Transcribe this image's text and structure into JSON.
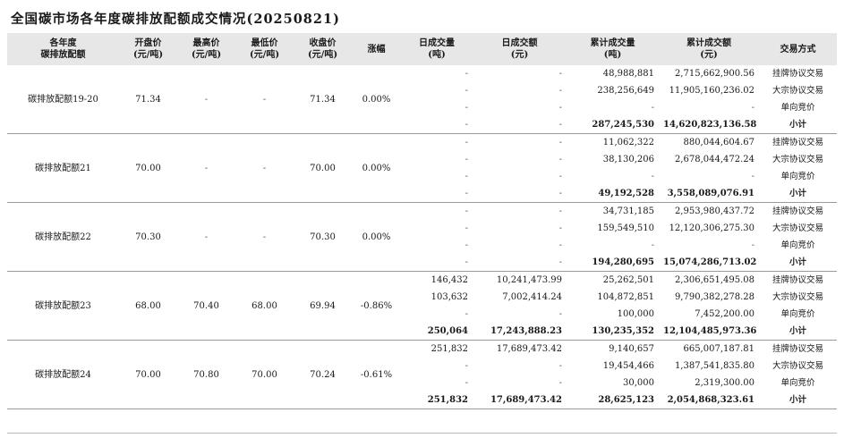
{
  "page_title": "全国碳市场各年度碳排放配额成交情况(20250821)",
  "columns": [
    [
      "各年度",
      "碳排放配额"
    ],
    [
      "开盘价",
      "(元/吨)"
    ],
    [
      "最高价",
      "(元/吨)"
    ],
    [
      "最低价",
      "(元/吨)"
    ],
    [
      "收盘价",
      "(元/吨)"
    ],
    [
      "涨幅"
    ],
    [
      "日成交量",
      "(吨)"
    ],
    [
      "日成交额",
      "(元)"
    ],
    [
      "累计成交量",
      "(吨)"
    ],
    [
      "累计成交额",
      "(元)"
    ],
    [
      "交易方式"
    ]
  ],
  "groups": [
    {
      "name": "碳排放配额19-20",
      "open": "71.34",
      "high": "-",
      "low": "-",
      "close": "71.34",
      "change": "0.00%",
      "rows": [
        {
          "dvol": "-",
          "damt": "-",
          "cvol": "48,988,881",
          "camt": "2,715,662,900.56",
          "method": "挂牌协议交易"
        },
        {
          "dvol": "-",
          "damt": "-",
          "cvol": "238,256,649",
          "camt": "11,905,160,236.02",
          "method": "大宗协议交易"
        },
        {
          "dvol": "-",
          "damt": "-",
          "cvol": "-",
          "camt": "-",
          "method": "单向竞价"
        }
      ],
      "subtotal": {
        "dvol": "-",
        "damt": "-",
        "cvol": "287,245,530",
        "camt": "14,620,823,136.58",
        "method": "小计"
      }
    },
    {
      "name": "碳排放配额21",
      "open": "70.00",
      "high": "-",
      "low": "-",
      "close": "70.00",
      "change": "0.00%",
      "rows": [
        {
          "dvol": "-",
          "damt": "-",
          "cvol": "11,062,322",
          "camt": "880,044,604.67",
          "method": "挂牌协议交易"
        },
        {
          "dvol": "-",
          "damt": "-",
          "cvol": "38,130,206",
          "camt": "2,678,044,472.24",
          "method": "大宗协议交易"
        },
        {
          "dvol": "-",
          "damt": "-",
          "cvol": "-",
          "camt": "-",
          "method": "单向竞价"
        }
      ],
      "subtotal": {
        "dvol": "-",
        "damt": "-",
        "cvol": "49,192,528",
        "camt": "3,558,089,076.91",
        "method": "小计"
      }
    },
    {
      "name": "碳排放配额22",
      "open": "70.30",
      "high": "-",
      "low": "-",
      "close": "70.30",
      "change": "0.00%",
      "rows": [
        {
          "dvol": "-",
          "damt": "-",
          "cvol": "34,731,185",
          "camt": "2,953,980,437.72",
          "method": "挂牌协议交易"
        },
        {
          "dvol": "-",
          "damt": "-",
          "cvol": "159,549,510",
          "camt": "12,120,306,275.30",
          "method": "大宗协议交易"
        },
        {
          "dvol": "-",
          "damt": "-",
          "cvol": "-",
          "camt": "-",
          "method": "单向竞价"
        }
      ],
      "subtotal": {
        "dvol": "-",
        "damt": "-",
        "cvol": "194,280,695",
        "camt": "15,074,286,713.02",
        "method": "小计"
      }
    },
    {
      "name": "碳排放配额23",
      "open": "68.00",
      "high": "70.40",
      "low": "68.00",
      "close": "69.94",
      "change": "-0.86%",
      "rows": [
        {
          "dvol": "146,432",
          "damt": "10,241,473.99",
          "cvol": "25,262,501",
          "camt": "2,306,651,495.08",
          "method": "挂牌协议交易"
        },
        {
          "dvol": "103,632",
          "damt": "7,002,414.24",
          "cvol": "104,872,851",
          "camt": "9,790,382,278.28",
          "method": "大宗协议交易"
        },
        {
          "dvol": "-",
          "damt": "-",
          "cvol": "100,000",
          "camt": "7,452,200.00",
          "method": "单向竞价"
        }
      ],
      "subtotal": {
        "dvol": "250,064",
        "damt": "17,243,888.23",
        "cvol": "130,235,352",
        "camt": "12,104,485,973.36",
        "method": "小计"
      }
    },
    {
      "name": "碳排放配额24",
      "open": "70.00",
      "high": "70.80",
      "low": "70.00",
      "close": "70.24",
      "change": "-0.61%",
      "rows": [
        {
          "dvol": "251,832",
          "damt": "17,689,473.42",
          "cvol": "9,140,657",
          "camt": "665,007,187.81",
          "method": "挂牌协议交易"
        },
        {
          "dvol": "-",
          "damt": "-",
          "cvol": "19,454,466",
          "camt": "1,387,541,835.80",
          "method": "大宗协议交易"
        },
        {
          "dvol": "-",
          "damt": "-",
          "cvol": "30,000",
          "camt": "2,319,300.00",
          "method": "单向竞价"
        }
      ],
      "subtotal": {
        "dvol": "251,832",
        "damt": "17,689,473.42",
        "cvol": "28,625,123",
        "camt": "2,054,868,323.61",
        "method": "小计"
      }
    }
  ]
}
